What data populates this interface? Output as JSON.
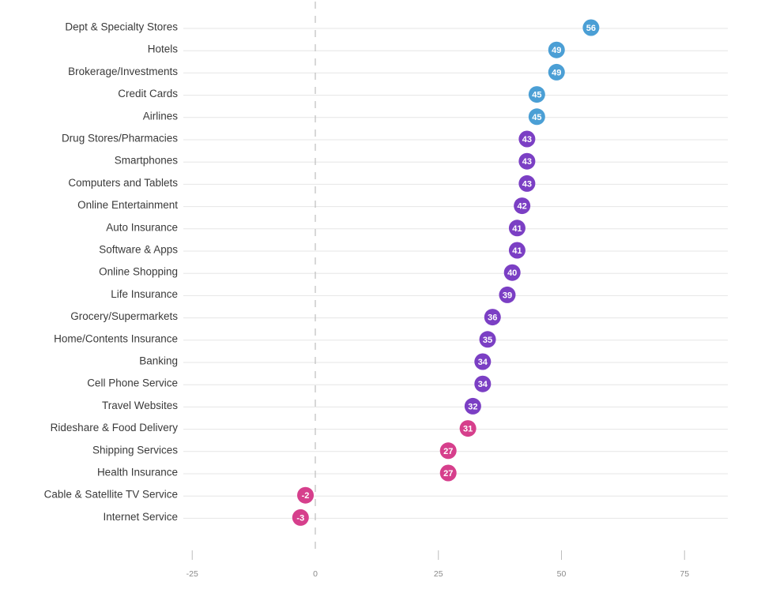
{
  "chart_data": {
    "type": "scatter",
    "orientation": "horizontal-dot-plot",
    "title": "",
    "xlabel": "",
    "ylabel": "",
    "xlim": [
      -25,
      85
    ],
    "x_ticks": [
      -25,
      0,
      25,
      50,
      75
    ],
    "x_tick_labels": [
      "-25",
      "0",
      "25",
      "50",
      "75"
    ],
    "zero_reference_line": "dashed",
    "grid": "horizontal",
    "legend": "none",
    "colors": {
      "high": "#4b9fd5",
      "mid": "#7b3fc4",
      "low": "#d63f8c",
      "gridline": "#e6e6e6",
      "zero_line": "#bdbdbd",
      "category_text": "#3a3a3a",
      "tick_text": "#8a8a8a"
    },
    "categories": [
      "Dept & Specialty Stores",
      "Hotels",
      "Brokerage/Investments",
      "Credit Cards",
      "Airlines",
      "Drug Stores/Pharmacies",
      "Smartphones",
      "Computers and Tablets",
      "Online Entertainment",
      "Auto Insurance",
      "Software & Apps",
      "Online Shopping",
      "Life Insurance",
      "Grocery/Supermarkets",
      "Home/Contents Insurance",
      "Banking",
      "Cell Phone Service",
      "Travel Websites",
      "Rideshare & Food Delivery",
      "Shipping Services",
      "Health Insurance",
      "Cable & Satellite TV Service",
      "Internet Service"
    ],
    "values": [
      56,
      49,
      49,
      45,
      45,
      43,
      43,
      43,
      42,
      41,
      41,
      40,
      39,
      36,
      35,
      34,
      34,
      32,
      31,
      27,
      27,
      -2,
      -3
    ],
    "value_labels": [
      "56",
      "49",
      "49",
      "45",
      "45",
      "43",
      "43",
      "43",
      "42",
      "41",
      "41",
      "40",
      "39",
      "36",
      "35",
      "34",
      "34",
      "32",
      "31",
      "27",
      "27",
      "-2",
      "-3"
    ],
    "color_groups": [
      "high",
      "high",
      "high",
      "high",
      "high",
      "mid",
      "mid",
      "mid",
      "mid",
      "mid",
      "mid",
      "mid",
      "mid",
      "mid",
      "mid",
      "mid",
      "mid",
      "mid",
      "low",
      "low",
      "low",
      "low",
      "low"
    ]
  }
}
